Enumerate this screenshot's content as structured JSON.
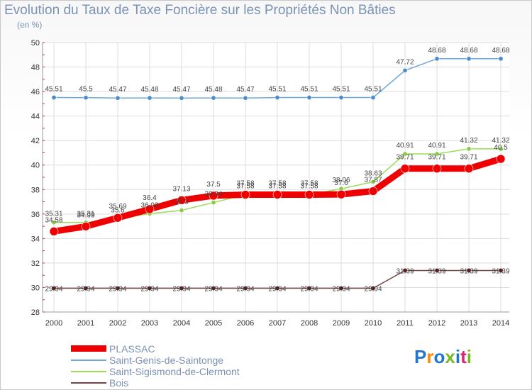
{
  "chart_data": {
    "type": "line",
    "title": "Evolution du Taux de Taxe Foncière sur les Propriétés Non Bâties",
    "ylabel": "(en %)",
    "xlabel": "",
    "ylim": [
      28,
      50
    ],
    "yticks": [
      "28",
      "30",
      "32",
      "34",
      "36",
      "38",
      "40",
      "42",
      "44",
      "46",
      "48",
      "50"
    ],
    "categories": [
      "2000",
      "2001",
      "2002",
      "2003",
      "2004",
      "2005",
      "2006",
      "2007",
      "2008",
      "2009",
      "2010",
      "2011",
      "2012",
      "2013",
      "2014"
    ],
    "series": [
      {
        "name": "PLASSAC",
        "color": "#ee0000",
        "values": [
          34.58,
          34.99,
          35.69,
          36.4,
          37.13,
          37.5,
          37.58,
          37.58,
          37.58,
          37.6,
          37.87,
          39.71,
          39.71,
          39.71,
          40.5
        ],
        "labels": [
          "34.58",
          "34.99",
          "35.69",
          "36.4",
          "37.13",
          "37.5",
          "37.58",
          "37.58",
          "37.58",
          "37.6",
          "37.87",
          "39.71",
          "39.71",
          "39.71",
          "40.5"
        ]
      },
      {
        "name": "Saint-Genis-de-Saintonge",
        "color": "#6fa8dc",
        "values": [
          45.51,
          45.5,
          45.47,
          45.48,
          45.47,
          45.48,
          45.47,
          45.51,
          45.51,
          45.51,
          45.51,
          47.72,
          48.68,
          48.68,
          48.68
        ],
        "labels": [
          "45.51",
          "45.5",
          "45.47",
          "45.48",
          "45.47",
          "45.48",
          "45.47",
          "45.51",
          "45.51",
          "45.51",
          "45.51",
          "47.72",
          "48.68",
          "48.68",
          "48.68"
        ]
      },
      {
        "name": "Saint-Sigismond-de-Clermont",
        "color": "#99dd55",
        "values": [
          35.31,
          35.31,
          35.6,
          36.03,
          36.3,
          36.94,
          37.58,
          37.58,
          37.58,
          38.06,
          38.63,
          40.91,
          40.91,
          41.32,
          41.32
        ],
        "labels": [
          "35.31",
          "35.31",
          "35.6",
          "36.03",
          "36.3",
          "36.94",
          "37.58",
          "37.58",
          "37.58",
          "38.06",
          "38.63",
          "40.91",
          "40.91",
          "41.32",
          "41.32"
        ]
      },
      {
        "name": "Bois",
        "color": "#774444",
        "values": [
          29.94,
          29.94,
          29.94,
          29.94,
          29.94,
          29.94,
          29.94,
          29.94,
          29.94,
          29.94,
          29.94,
          31.39,
          31.39,
          31.39,
          31.39
        ],
        "labels": [
          "29.94",
          "29.94",
          "29.94",
          "29.94",
          "29.94",
          "29.94",
          "29.94",
          "29.94",
          "29.94",
          "29.94",
          "29.94",
          "31.39",
          "31.39",
          "31.39",
          "31.39"
        ]
      }
    ],
    "legend": "bottom-left",
    "grid": true
  },
  "logo": {
    "text": "Proxiti",
    "colors": [
      "#2277cc",
      "#ff8800",
      "#2277cc",
      "#77bb22",
      "#2277cc",
      "#dd2277",
      "#77bb22"
    ]
  }
}
